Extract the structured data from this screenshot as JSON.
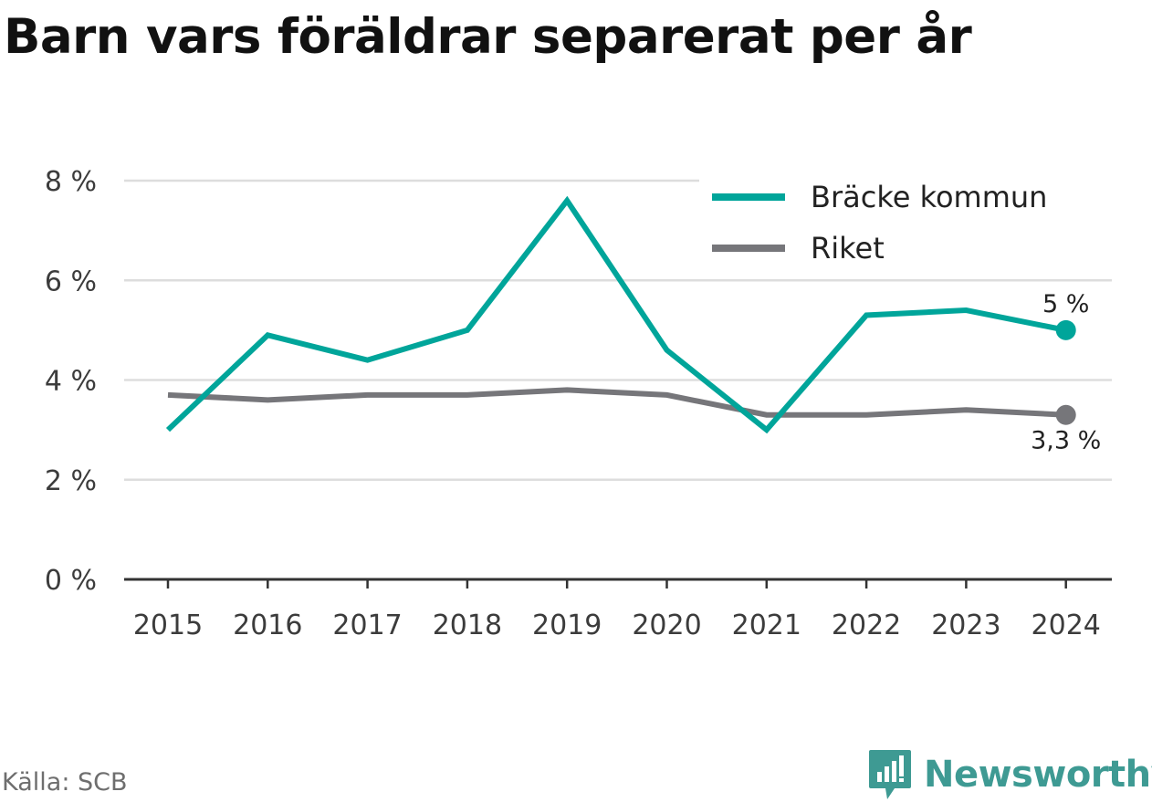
{
  "title": "Barn vars föräldrar separerat per år",
  "source": "Källa: SCB",
  "brand": "Newsworthy",
  "chart_data": {
    "type": "line",
    "title": "Barn vars föräldrar separerat per år",
    "x": [
      "2015",
      "2016",
      "2017",
      "2018",
      "2019",
      "2020",
      "2021",
      "2022",
      "2023",
      "2024"
    ],
    "series": [
      {
        "name": "Bräcke kommun",
        "color": "#00a59a",
        "values": [
          3.0,
          4.9,
          4.4,
          5.0,
          7.6,
          4.6,
          3.0,
          5.3,
          5.4,
          5.0
        ],
        "end_label": "5 %"
      },
      {
        "name": "Riket",
        "color": "#76767a",
        "values": [
          3.7,
          3.6,
          3.7,
          3.7,
          3.8,
          3.7,
          3.3,
          3.3,
          3.4,
          3.3
        ],
        "end_label": "3,3 %"
      }
    ],
    "y_ticks": [
      {
        "value": 0,
        "label": "0 %"
      },
      {
        "value": 2,
        "label": "2 %"
      },
      {
        "value": 4,
        "label": "4 %"
      },
      {
        "value": 6,
        "label": "6 %"
      },
      {
        "value": 8,
        "label": "8 %"
      }
    ],
    "ylim": [
      0,
      8
    ],
    "grid": true,
    "legend": "top-right"
  }
}
